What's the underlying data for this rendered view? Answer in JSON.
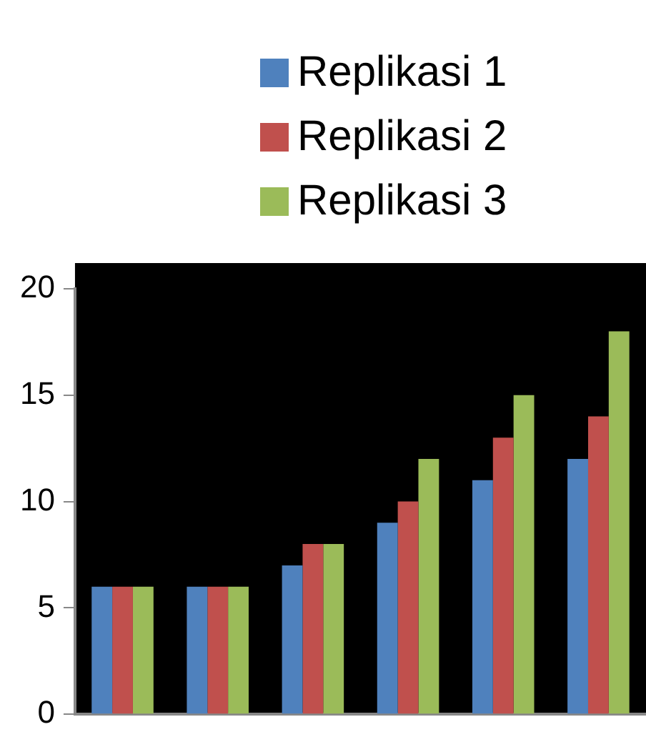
{
  "chart_data": {
    "type": "bar",
    "categories": [
      null,
      null,
      null,
      null,
      null,
      null
    ],
    "series": [
      {
        "name": "Replikasi 1",
        "color": "#4f81bd",
        "values": [
          6,
          6,
          7,
          9,
          11,
          12
        ]
      },
      {
        "name": "Replikasi 2",
        "color": "#c0504d",
        "values": [
          6,
          6,
          8,
          10,
          13,
          14
        ]
      },
      {
        "name": "Replikasi 3",
        "color": "#9bbb59",
        "values": [
          6,
          6,
          8,
          12,
          15,
          18
        ]
      }
    ],
    "ylim": [
      0,
      20
    ],
    "yticks": [
      0,
      5,
      10,
      15,
      20
    ],
    "grid": false,
    "legend": "top right"
  }
}
